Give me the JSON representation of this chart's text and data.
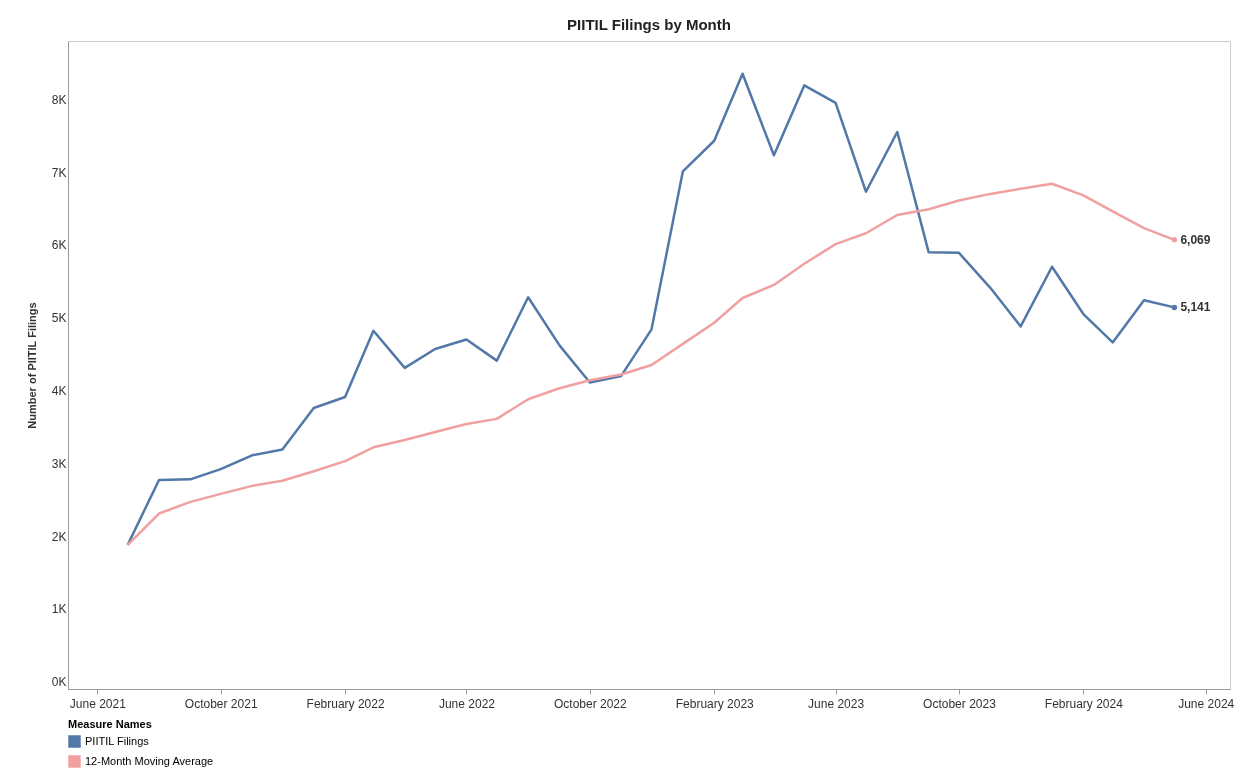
{
  "chart_data": {
    "type": "line",
    "title": "PIITIL Filings by Month",
    "ylabel": "Number of PIITIL Filings",
    "legend_title": "Measure Names",
    "legend": "bottom",
    "grid": false,
    "x": [
      "2021-07",
      "2021-08",
      "2021-09",
      "2021-10",
      "2021-11",
      "2021-12",
      "2022-01",
      "2022-02",
      "2022-03",
      "2022-04",
      "2022-05",
      "2022-06",
      "2022-07",
      "2022-08",
      "2022-09",
      "2022-10",
      "2022-11",
      "2022-12",
      "2023-01",
      "2023-02",
      "2023-03",
      "2023-04",
      "2023-05",
      "2023-06",
      "2023-07",
      "2023-08",
      "2023-09",
      "2023-10",
      "2023-11",
      "2023-12",
      "2024-01",
      "2024-02",
      "2024-03",
      "2024-04",
      "2024-05"
    ],
    "xlim": [
      "2021-05-03",
      "2024-06-25"
    ],
    "xticks": [
      {
        "value": "2021-06",
        "label": "June 2021"
      },
      {
        "value": "2021-10",
        "label": "October 2021"
      },
      {
        "value": "2022-02",
        "label": "February 2022"
      },
      {
        "value": "2022-06",
        "label": "June 2022"
      },
      {
        "value": "2022-10",
        "label": "October 2022"
      },
      {
        "value": "2023-02",
        "label": "February 2023"
      },
      {
        "value": "2023-06",
        "label": "June 2023"
      },
      {
        "value": "2023-10",
        "label": "October 2023"
      },
      {
        "value": "2024-02",
        "label": "February 2024"
      },
      {
        "value": "2024-06",
        "label": "June 2024"
      }
    ],
    "ylim": [
      -100,
      8800
    ],
    "yticks": [
      {
        "value": 0,
        "label": "0K"
      },
      {
        "value": 1000,
        "label": "1K"
      },
      {
        "value": 2000,
        "label": "2K"
      },
      {
        "value": 3000,
        "label": "3K"
      },
      {
        "value": 4000,
        "label": "4K"
      },
      {
        "value": 5000,
        "label": "5K"
      },
      {
        "value": 6000,
        "label": "6K"
      },
      {
        "value": 7000,
        "label": "7K"
      },
      {
        "value": 8000,
        "label": "8K"
      }
    ],
    "series": [
      {
        "name": "PIITIL Filings",
        "color": "#5278a7",
        "values": [
          1880,
          2770,
          2780,
          2920,
          3110,
          3190,
          3760,
          3910,
          4820,
          4310,
          4570,
          4700,
          4410,
          5280,
          4620,
          4110,
          4200,
          4840,
          7010,
          7430,
          8350,
          7230,
          8190,
          7950,
          6730,
          7550,
          5900,
          5890,
          5410,
          4880,
          5700,
          5050,
          4660,
          5240,
          5141
        ],
        "value_labels": [
          null,
          null,
          null,
          null,
          null,
          null,
          null,
          null,
          null,
          null,
          null,
          null,
          null,
          null,
          null,
          null,
          null,
          null,
          null,
          null,
          null,
          null,
          null,
          null,
          null,
          null,
          null,
          null,
          null,
          null,
          null,
          null,
          null,
          null,
          "5,141"
        ]
      },
      {
        "name": "12-Month Moving Average",
        "color": "#f0a0a0",
        "values": [
          1880,
          2310,
          2470,
          2580,
          2690,
          2760,
          2890,
          3030,
          3220,
          3320,
          3430,
          3540,
          3610,
          3880,
          4030,
          4140,
          4220,
          4350,
          4640,
          4930,
          5270,
          5450,
          5740,
          6010,
          6160,
          6410,
          6490,
          6610,
          6700,
          6770,
          6840,
          6680,
          6460,
          6230,
          6069
        ],
        "value_labels": [
          null,
          null,
          null,
          null,
          null,
          null,
          null,
          null,
          null,
          null,
          null,
          null,
          null,
          null,
          null,
          null,
          null,
          null,
          null,
          null,
          null,
          null,
          null,
          null,
          null,
          null,
          null,
          null,
          null,
          null,
          null,
          null,
          null,
          null,
          "6,069"
        ]
      }
    ]
  }
}
